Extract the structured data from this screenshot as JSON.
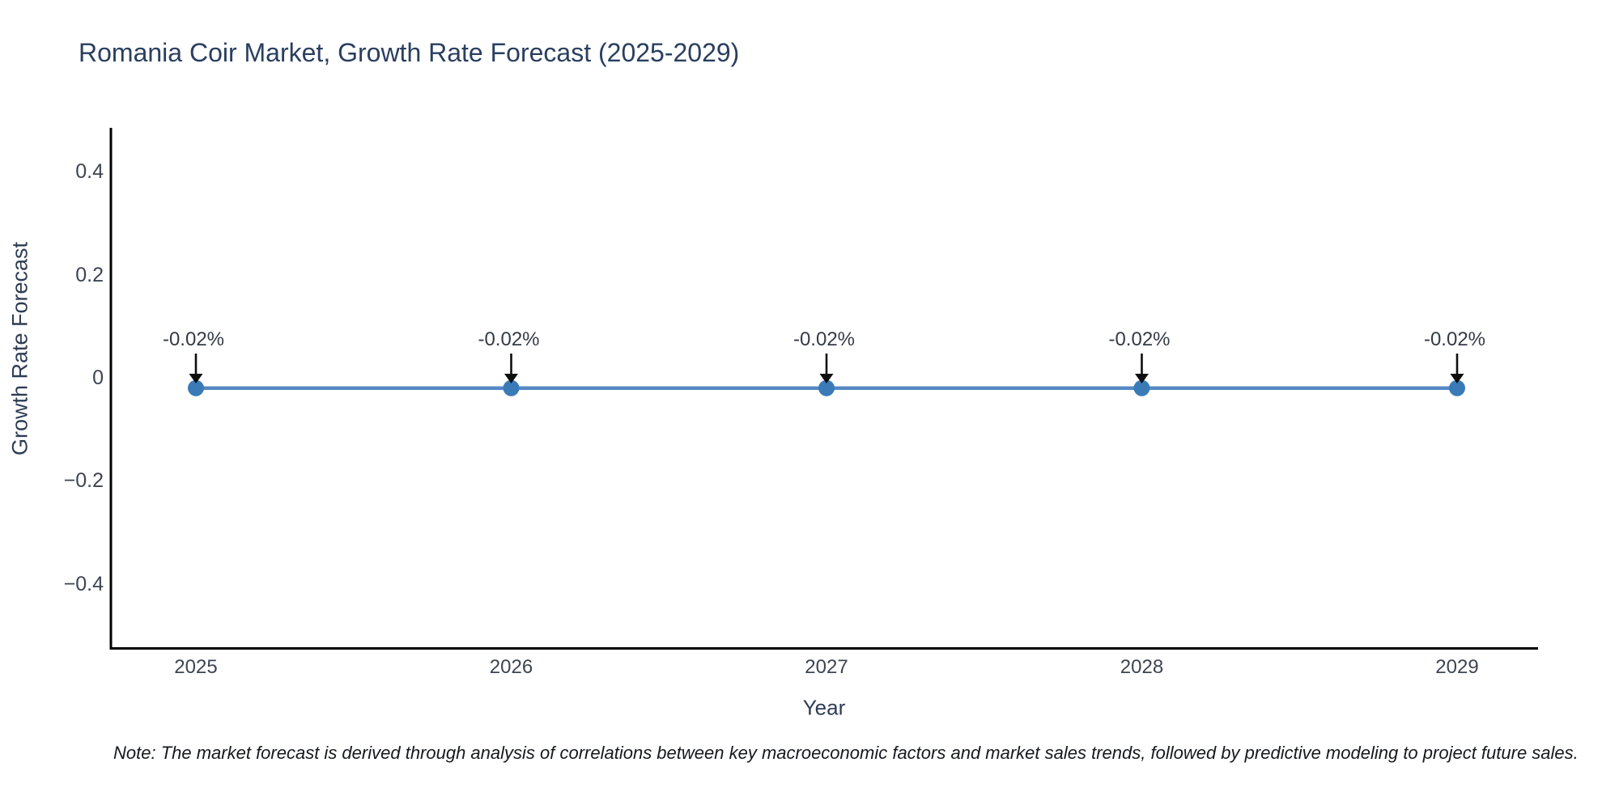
{
  "chart_data": {
    "type": "line",
    "title": "Romania Coir Market, Growth Rate Forecast (2025-2029)",
    "xlabel": "Year",
    "ylabel": "Growth Rate Forecast",
    "categories": [
      "2025",
      "2026",
      "2027",
      "2028",
      "2029"
    ],
    "series": [
      {
        "name": "Growth Rate Forecast",
        "values": [
          -0.02,
          -0.02,
          -0.02,
          -0.02,
          -0.02
        ]
      }
    ],
    "point_labels": [
      "-0.02%",
      "-0.02%",
      "-0.02%",
      "-0.02%",
      "-0.02%"
    ],
    "ytick_values": [
      0.4,
      0.2,
      0,
      -0.2,
      -0.4
    ],
    "ytick_labels": [
      "0.4",
      "0.2",
      "0",
      "−0.2",
      "−0.4"
    ],
    "ylim": [
      -0.53,
      0.49
    ],
    "grid": false,
    "legend": "none",
    "annotation_arrows": "down-to-point"
  },
  "note": "Note: The market forecast is derived through analysis of correlations between key macroeconomic factors and market sales trends, followed by predictive modeling to project future sales.",
  "colors": {
    "background": "#ffffff",
    "title": "#2a3f5f",
    "axis_label": "#2e3d54",
    "tick_label": "#3d4552",
    "annotation": "#343b46",
    "line": "#5589c4",
    "marker": "#3a7bb7",
    "arrow": "#0f0f0f",
    "axis_line": "#000000",
    "note_text": "#16191d"
  }
}
